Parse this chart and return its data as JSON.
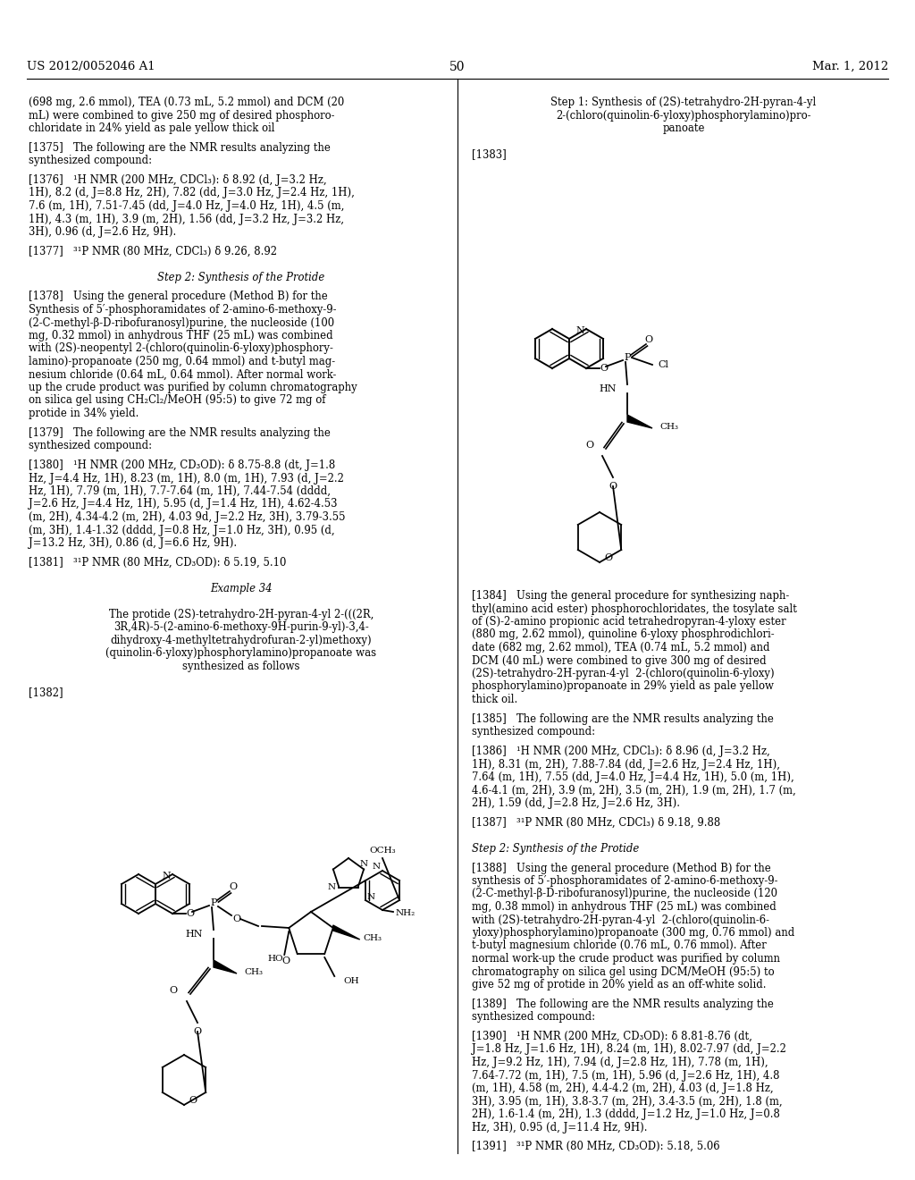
{
  "header_left": "US 2012/0052046 A1",
  "header_right": "Mar. 1, 2012",
  "page_number": "50",
  "background_color": "#ffffff",
  "text_color": "#000000"
}
